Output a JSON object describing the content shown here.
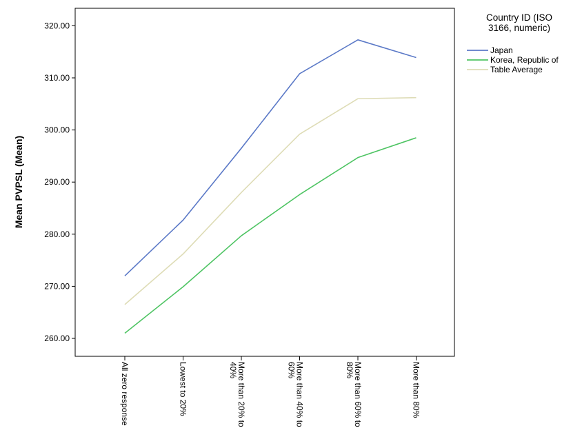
{
  "chart_data": {
    "type": "line",
    "ylabel": "Mean PVPSL (Mean)",
    "xlabel": "",
    "ylim": [
      257,
      322
    ],
    "yticks": [
      "260.00",
      "270.00",
      "280.00",
      "290.00",
      "300.00",
      "310.00",
      "320.00"
    ],
    "categories": [
      [
        "All zero response"
      ],
      [
        "Lowest to 20%"
      ],
      [
        "More than 20% to",
        "40%"
      ],
      [
        "More than 40% to",
        "60%"
      ],
      [
        "More than 60% to",
        "80%"
      ],
      [
        "More than 80%"
      ]
    ],
    "legend": {
      "title_lines": [
        "Country ID (ISO",
        "3166, numeric)"
      ],
      "placement": "right"
    },
    "series": [
      {
        "name": "Japan",
        "color": "#5b79c7",
        "values": [
          272.0,
          282.7,
          296.5,
          310.8,
          317.3,
          313.9
        ]
      },
      {
        "name": "Korea, Republic of",
        "color": "#4ec463",
        "values": [
          261.0,
          269.9,
          279.7,
          287.6,
          294.7,
          298.5
        ]
      },
      {
        "name": "Table Average",
        "color": "#dedcb6",
        "values": [
          266.5,
          276.2,
          288.0,
          299.2,
          306.0,
          306.2
        ]
      }
    ],
    "grid": false
  }
}
